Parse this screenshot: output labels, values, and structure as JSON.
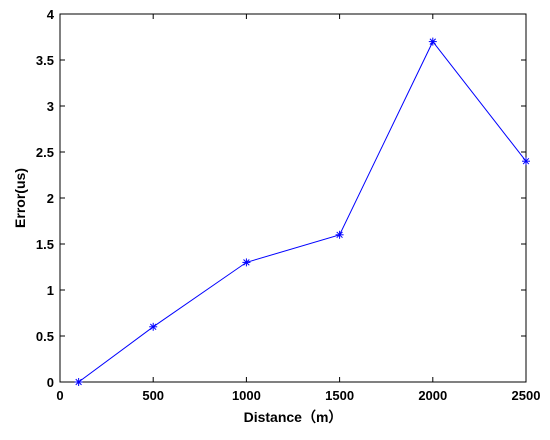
{
  "chart_data": {
    "type": "line",
    "title": "",
    "xlabel": "Distance（m）",
    "ylabel": "Error(us)",
    "xlim": [
      0,
      2500
    ],
    "ylim": [
      0,
      4
    ],
    "xticks": [
      0,
      500,
      1000,
      1500,
      2000,
      2500
    ],
    "yticks": [
      0,
      0.5,
      1,
      1.5,
      2,
      2.5,
      3,
      3.5,
      4
    ],
    "xtick_labels": [
      "0",
      "500",
      "1000",
      "1500",
      "2000",
      "2500"
    ],
    "ytick_labels": [
      "0",
      "0.5",
      "1",
      "1.5",
      "2",
      "2.5",
      "3",
      "3.5",
      "4"
    ],
    "grid": false,
    "marker": "asterisk",
    "series": [
      {
        "x": [
          100,
          500,
          1000,
          1500,
          2000,
          2500
        ],
        "y": [
          0,
          0.6,
          1.3,
          1.6,
          3.7,
          2.4
        ],
        "color": "#0000ff"
      }
    ]
  }
}
